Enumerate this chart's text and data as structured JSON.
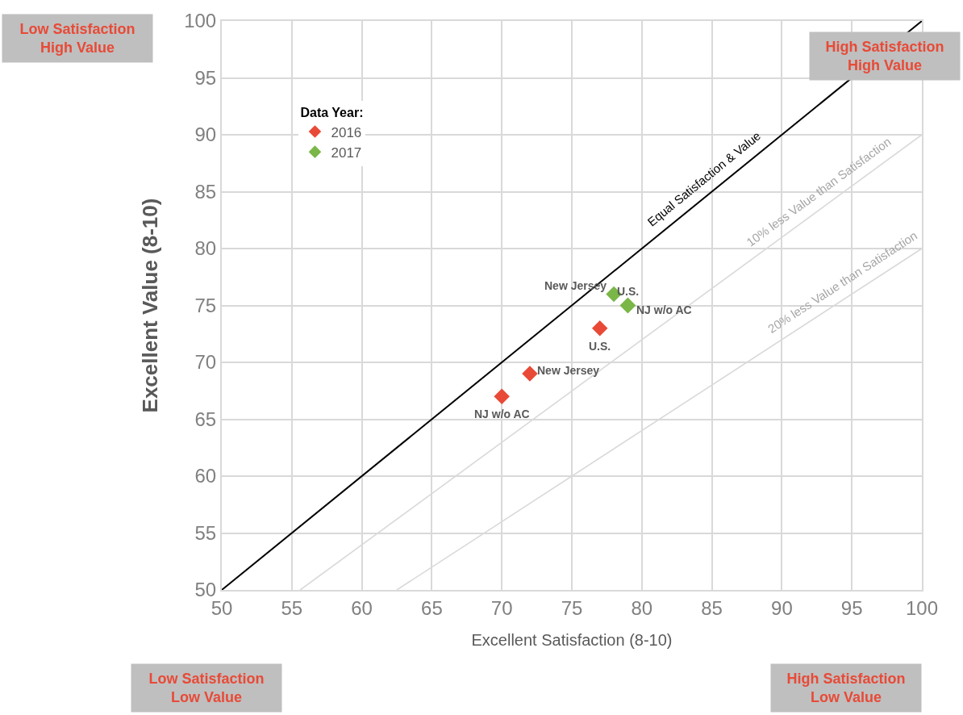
{
  "chart_data": {
    "type": "scatter",
    "xlabel": "Excellent Satisfaction (8-10)",
    "ylabel": "Excellent Value (8-10)",
    "legend_title": "Data Year:",
    "xlim": [
      50,
      100
    ],
    "ylim": [
      50,
      100
    ],
    "xticks": [
      50,
      55,
      60,
      65,
      70,
      75,
      80,
      85,
      90,
      95,
      100
    ],
    "yticks": [
      50,
      55,
      60,
      65,
      70,
      75,
      80,
      85,
      90,
      95,
      100
    ],
    "grid": true,
    "legend": "top left",
    "marker": "diamond",
    "series": [
      {
        "type": "line",
        "marker": "none",
        "color": "#000000",
        "x": [
          50,
          100
        ],
        "values": [
          50,
          100
        ]
      },
      {
        "type": "line",
        "marker": "none",
        "color": "#d9d9d9",
        "x": [
          55.6,
          100
        ],
        "values": [
          50,
          90
        ]
      },
      {
        "type": "line",
        "marker": "none",
        "color": "#d9d9d9",
        "x": [
          62.5,
          100
        ],
        "values": [
          50,
          80
        ]
      },
      {
        "name": "2016",
        "color": "#e84a37",
        "x": [
          70,
          72,
          77
        ],
        "values": [
          67,
          69,
          73
        ]
      },
      {
        "name": "2017",
        "color": "#7ab648",
        "x": [
          78,
          79,
          79
        ],
        "values": [
          76,
          75,
          75
        ]
      }
    ],
    "annotations": [
      "Low Satisfaction\nHigh Value",
      "High Satisfaction\nHigh Value",
      "Low Satisfaction\nLow Value",
      "High Satisfaction\nLow Value",
      {
        "text": "Equal Satisfaction & Value",
        "x": 85,
        "y": 85
      },
      {
        "text": "10% less Value than Satisfaction",
        "x": 93.2,
        "y": 83.9
      },
      {
        "text": "20% less Value than Satisfaction",
        "x": 94.9,
        "y": 75.9
      },
      {
        "text": "NJ w/o AC",
        "x": 70,
        "y": 67
      },
      {
        "text": "New Jersey",
        "x": 72,
        "y": 69
      },
      {
        "text": "U.S.",
        "x": 77,
        "y": 73
      },
      {
        "text": "New Jersey",
        "x": 78,
        "y": 76
      },
      {
        "text": "U.S.",
        "x": 79,
        "y": 75
      },
      {
        "text": "NJ w/o AC",
        "x": 79,
        "y": 75
      }
    ]
  }
}
